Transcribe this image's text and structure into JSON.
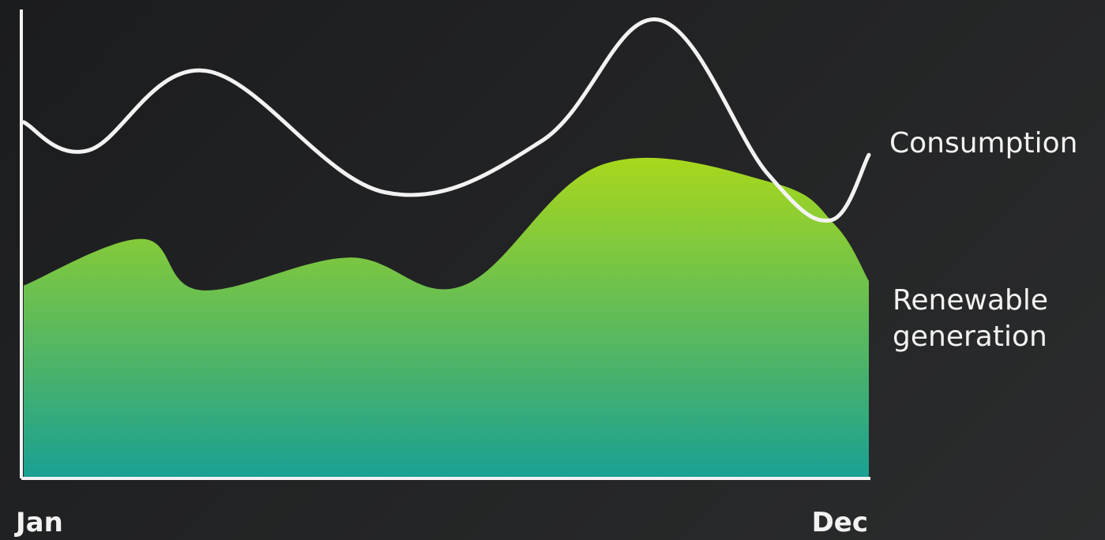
{
  "chart_data": {
    "type": "area",
    "title": "",
    "xlabel": "",
    "ylabel": "",
    "x_tick_labels": [
      "Jan",
      "Dec"
    ],
    "xlim": [
      0,
      1
    ],
    "ylim": [
      0,
      1
    ],
    "grid": false,
    "legend": "inline-right",
    "series": [
      {
        "name": "Consumption",
        "chart_kind": "line",
        "color": "#f2f2f2",
        "x": [
          0.0,
          0.077,
          0.216,
          0.427,
          0.613,
          0.75,
          0.88,
          0.955,
          1.0
        ],
        "y": [
          0.76,
          0.7,
          0.87,
          0.61,
          0.72,
          0.98,
          0.65,
          0.55,
          0.69
        ]
      },
      {
        "name": "Renewable generation",
        "chart_kind": "area",
        "color_top": "#a8d81c",
        "color_bottom": "#1aa093",
        "x": [
          0.0,
          0.14,
          0.21,
          0.385,
          0.52,
          0.686,
          0.887,
          0.96,
          1.0
        ],
        "y": [
          0.41,
          0.51,
          0.4,
          0.47,
          0.41,
          0.67,
          0.63,
          0.54,
          0.42
        ]
      }
    ]
  }
}
